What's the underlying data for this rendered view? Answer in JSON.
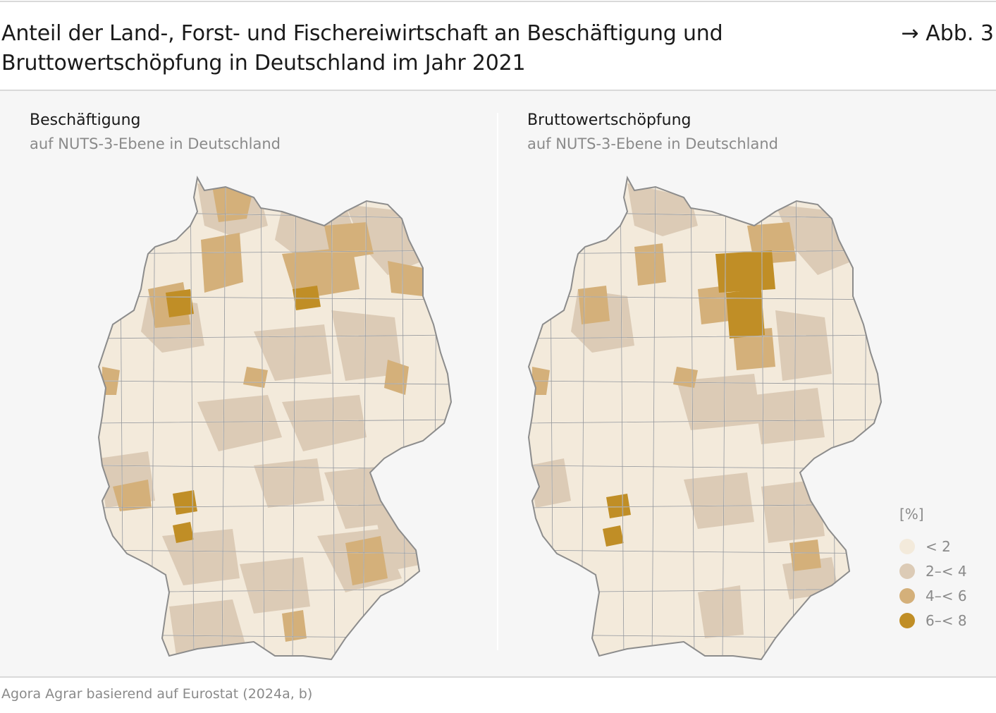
{
  "header": {
    "title": "Anteil der Land-, Forst- und Fischereiwirtschaft an Beschäftigung und Bruttowertschöpfung in Deutschland im Jahr 2021",
    "figure_ref": "→ Abb. 3"
  },
  "maps": [
    {
      "title": "Beschäftigung",
      "subtitle": "auf NUTS-3-Ebene in Deutschland"
    },
    {
      "title": "Bruttowertschöpfung",
      "subtitle": "auf NUTS-3-Ebene in Deutschland"
    }
  ],
  "legend": {
    "title": "[%]",
    "items": [
      {
        "label": "< 2",
        "color": "#f3eadb"
      },
      {
        "label": "2–< 4",
        "color": "#dccbb6"
      },
      {
        "label": "4–< 6",
        "color": "#d4b07a"
      },
      {
        "label": "6–< 8",
        "color": "#c08e26"
      }
    ]
  },
  "colors": {
    "border": "#8c8c8c",
    "panel_background": "#f6f6f6"
  },
  "source": "Agora Agrar basierend auf Eurostat (2024a, b)"
}
